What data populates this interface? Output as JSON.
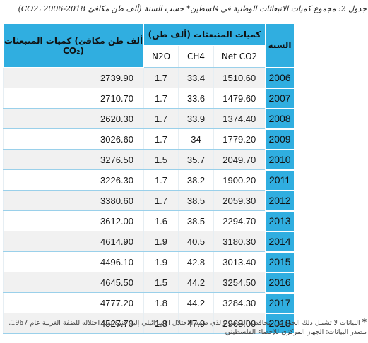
{
  "caption": "جدول 2: مجموع كميات الانبعاثات الوطنية في فلسطين* حسب السنة (ألف طن مكافئ CO2، 2006-2018)",
  "table": {
    "headers": {
      "year": "السنة",
      "emissions_group": "كميات المنبعثات (ألف طن)",
      "total": "كميات المنبعثات (ألف طن مكافئ CO₂)",
      "co2": "Net CO2",
      "ch4": "CH4",
      "n2o": "N2O"
    },
    "rows": [
      {
        "year": "2006",
        "co2": "1510.60",
        "ch4": "33.4",
        "n2o": "1.7",
        "total": "2739.90"
      },
      {
        "year": "2007",
        "co2": "1479.60",
        "ch4": "33.6",
        "n2o": "1.7",
        "total": "2710.70"
      },
      {
        "year": "2008",
        "co2": "1374.40",
        "ch4": "33.9",
        "n2o": "1.7",
        "total": "2620.30"
      },
      {
        "year": "2009",
        "co2": "1779.20",
        "ch4": "34",
        "n2o": "1.7",
        "total": "3026.60"
      },
      {
        "year": "2010",
        "co2": "2049.70",
        "ch4": "35.7",
        "n2o": "1.5",
        "total": "3276.50"
      },
      {
        "year": "2011",
        "co2": "1900.20",
        "ch4": "38.2",
        "n2o": "1.7",
        "total": "3226.30"
      },
      {
        "year": "2012",
        "co2": "2059.30",
        "ch4": "38.5",
        "n2o": "1.7",
        "total": "3380.60"
      },
      {
        "year": "2013",
        "co2": "2294.70",
        "ch4": "38.5",
        "n2o": "1.6",
        "total": "3612.00"
      },
      {
        "year": "2014",
        "co2": "3180.30",
        "ch4": "40.5",
        "n2o": "1.9",
        "total": "4614.90"
      },
      {
        "year": "2015",
        "co2": "3013.40",
        "ch4": "42.8",
        "n2o": "1.9",
        "total": "4496.10"
      },
      {
        "year": "2016",
        "co2": "3254.50",
        "ch4": "44.2",
        "n2o": "1.5",
        "total": "4645.50"
      },
      {
        "year": "2017",
        "co2": "3284.30",
        "ch4": "44.2",
        "n2o": "1.8",
        "total": "4777.20"
      },
      {
        "year": "2018",
        "co2": "2968.00",
        "ch4": "47.9",
        "n2o": "1.8",
        "total": "4527.70"
      }
    ]
  },
  "footnote_mark": "*",
  "footnote": "البيانات لا تشمل ذلك الجزء من محافظة القدس والذي ضمه الاحتلال الإسرائيلي إليه عنوة بعيد احتلاله للضفة الغربية عام 1967.",
  "source": "مصدر البيانات: الجهاز المركزي للإحصاء الفلسطيني",
  "colors": {
    "header_blue": "#30aee0",
    "row_shade": "#f1f1f1"
  }
}
